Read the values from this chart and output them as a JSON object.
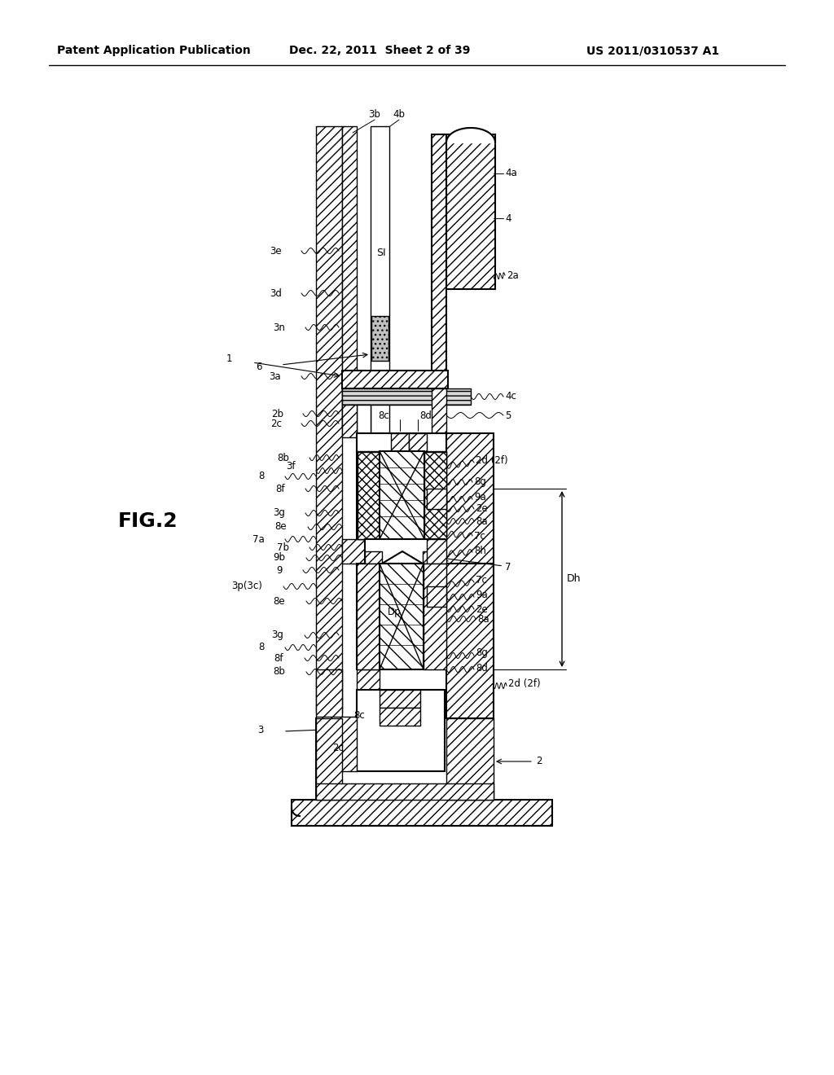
{
  "bg_color": "#ffffff",
  "header_left": "Patent Application Publication",
  "header_mid": "Dec. 22, 2011  Sheet 2 of 39",
  "header_right": "US 2011/0310537 A1"
}
